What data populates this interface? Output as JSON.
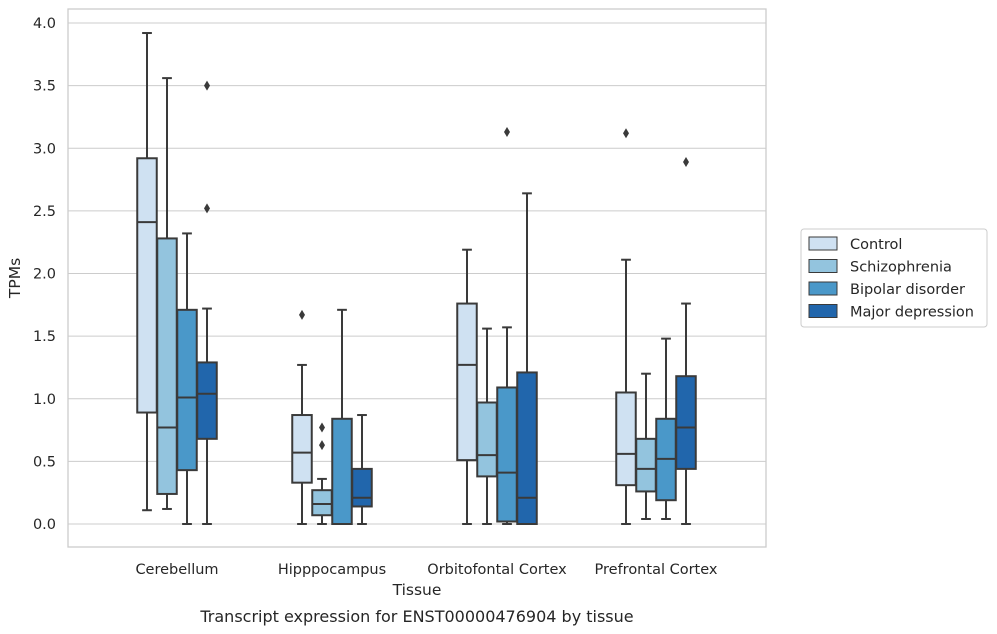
{
  "chart_data": {
    "type": "box",
    "title": "",
    "caption": "Transcript expression for ENST00000476904 by tissue",
    "xlabel": "Tissue",
    "ylabel": "TPMs",
    "ylim": [
      -0.19,
      4.1
    ],
    "yticks": [
      "0.0",
      "0.5",
      "1.0",
      "1.5",
      "2.0",
      "2.5",
      "3.0",
      "3.5",
      "4.0"
    ],
    "grid": "horizontal",
    "legend_position": "right",
    "categories": [
      "Cerebellum",
      "Hipppocampus",
      "Orbitofontal Cortex",
      "Prefrontal Cortex"
    ],
    "series": [
      {
        "name": "Control",
        "color": "#cfe1f2",
        "boxes": [
          {
            "whislo": 0.11,
            "q1": 0.89,
            "med": 2.41,
            "q3": 2.92,
            "whishi": 3.92,
            "fliers": []
          },
          {
            "whislo": 0.0,
            "q1": 0.33,
            "med": 0.57,
            "q3": 0.87,
            "whishi": 1.27,
            "fliers": [
              1.67
            ]
          },
          {
            "whislo": 0.0,
            "q1": 0.51,
            "med": 1.27,
            "q3": 1.76,
            "whishi": 2.19,
            "fliers": []
          },
          {
            "whislo": 0.0,
            "q1": 0.31,
            "med": 0.56,
            "q3": 1.05,
            "whishi": 2.11,
            "fliers": [
              3.12
            ]
          }
        ]
      },
      {
        "name": "Schizophrenia",
        "color": "#93c4de",
        "boxes": [
          {
            "whislo": 0.12,
            "q1": 0.24,
            "med": 0.77,
            "q3": 2.28,
            "whishi": 3.56,
            "fliers": []
          },
          {
            "whislo": 0.0,
            "q1": 0.07,
            "med": 0.16,
            "q3": 0.27,
            "whishi": 0.36,
            "fliers": [
              0.63,
              0.77
            ]
          },
          {
            "whislo": 0.0,
            "q1": 0.38,
            "med": 0.55,
            "q3": 0.97,
            "whishi": 1.56,
            "fliers": []
          },
          {
            "whislo": 0.04,
            "q1": 0.26,
            "med": 0.44,
            "q3": 0.68,
            "whishi": 1.2,
            "fliers": []
          }
        ]
      },
      {
        "name": "Bipolar disorder",
        "color": "#4a98c9",
        "boxes": [
          {
            "whislo": 0.0,
            "q1": 0.43,
            "med": 1.01,
            "q3": 1.71,
            "whishi": 2.32,
            "fliers": []
          },
          {
            "whislo": 0.0,
            "q1": 0.0,
            "med": 0.0,
            "q3": 0.84,
            "whishi": 1.71,
            "fliers": []
          },
          {
            "whislo": 0.0,
            "q1": 0.02,
            "med": 0.41,
            "q3": 1.09,
            "whishi": 1.57,
            "fliers": [
              3.13
            ]
          },
          {
            "whislo": 0.04,
            "q1": 0.19,
            "med": 0.52,
            "q3": 0.84,
            "whishi": 1.48,
            "fliers": []
          }
        ]
      },
      {
        "name": "Major depression",
        "color": "#2166ac",
        "boxes": [
          {
            "whislo": 0.0,
            "q1": 0.68,
            "med": 1.04,
            "q3": 1.29,
            "whishi": 1.72,
            "fliers": [
              2.52,
              3.5
            ]
          },
          {
            "whislo": 0.0,
            "q1": 0.14,
            "med": 0.21,
            "q3": 0.44,
            "whishi": 0.87,
            "fliers": []
          },
          {
            "whislo": 0.0,
            "q1": 0.0,
            "med": 0.21,
            "q3": 1.21,
            "whishi": 2.64,
            "fliers": []
          },
          {
            "whislo": 0.0,
            "q1": 0.44,
            "med": 0.77,
            "q3": 1.18,
            "whishi": 1.76,
            "fliers": [
              2.89
            ]
          }
        ]
      }
    ]
  }
}
